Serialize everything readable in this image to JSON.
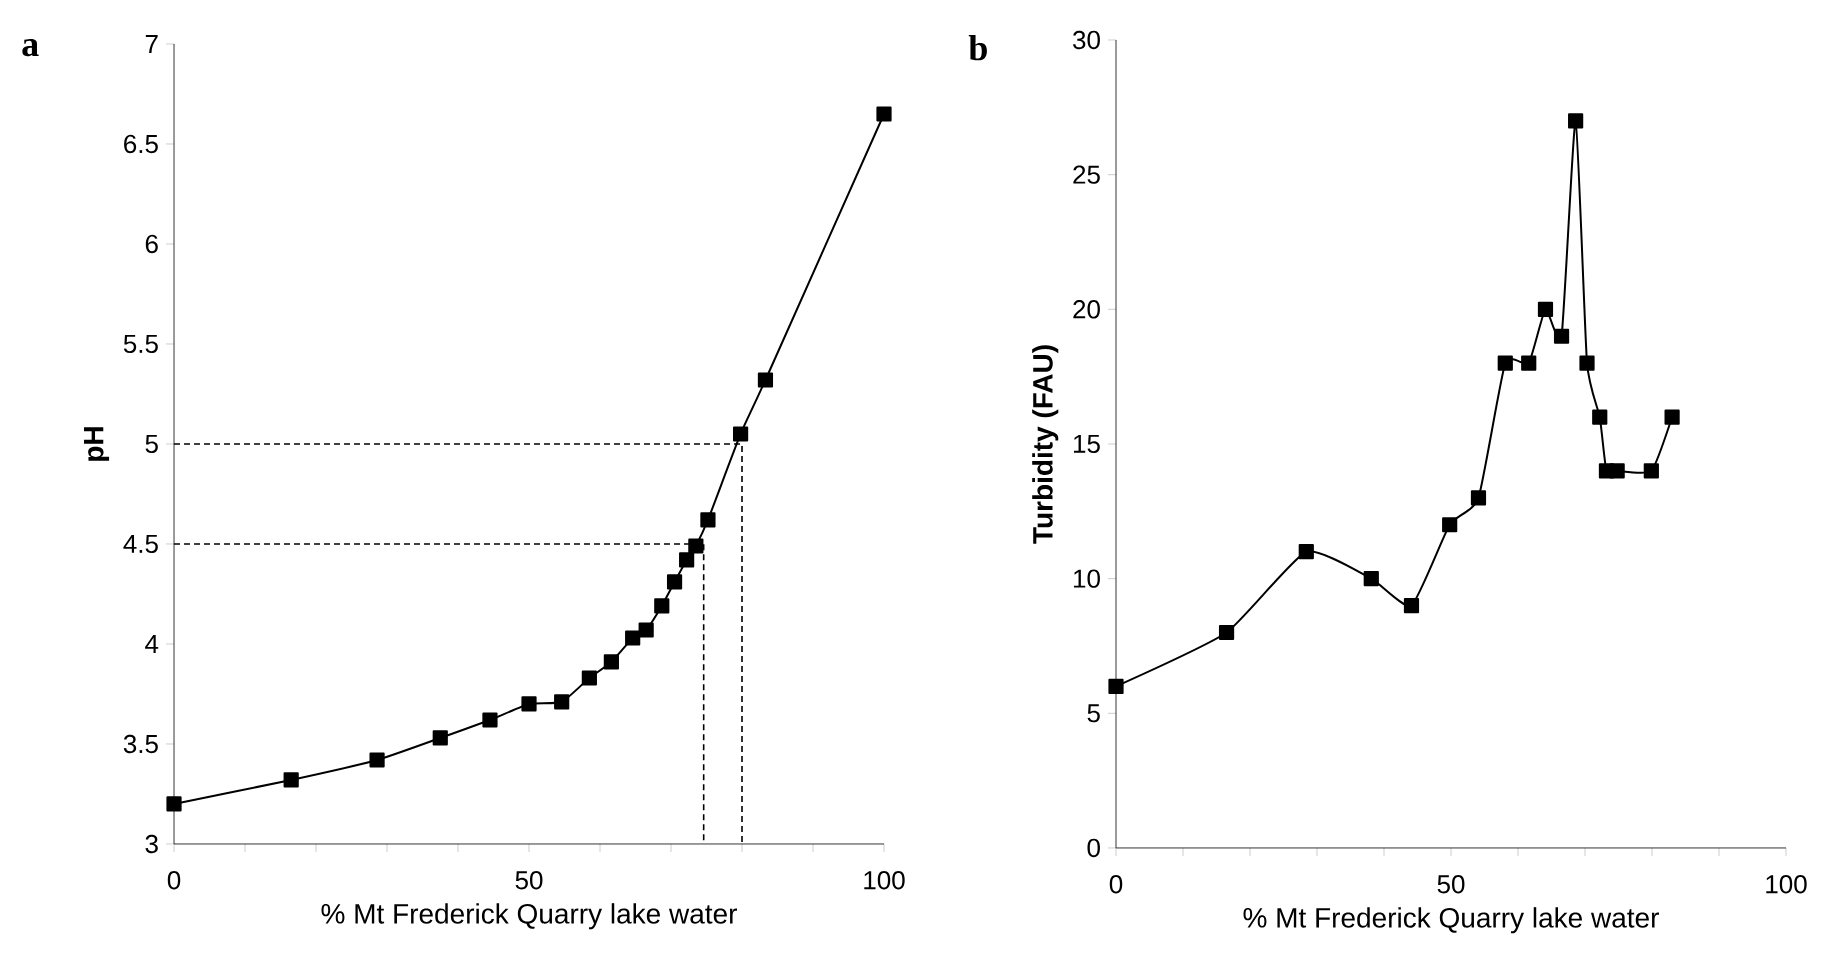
{
  "chart_data": [
    {
      "type": "line",
      "title": "a",
      "xlabel": "% Mt Frederick Quarry lake water",
      "ylabel": "pH",
      "xlim": [
        0,
        100
      ],
      "ylim": [
        3,
        7
      ],
      "xticks": [
        0,
        {
          "value": 10,
          "label": null
        },
        {
          "value": 20,
          "label": null
        },
        {
          "value": 30,
          "label": null
        },
        {
          "value": 40,
          "label": null
        },
        50,
        {
          "value": 60,
          "label": null
        },
        {
          "value": 70,
          "label": null
        },
        {
          "value": 80,
          "label": null
        },
        {
          "value": 90,
          "label": null
        },
        100
      ],
      "yticks": [
        3,
        3.5,
        4,
        4.5,
        5,
        5.5,
        6,
        6.5,
        7
      ],
      "marker": "square",
      "series": [
        {
          "color": "#000000",
          "x": [
            0,
            16.5,
            28.6,
            37.5,
            44.5,
            50,
            54.6,
            58.5,
            61.6,
            64.6,
            66.5,
            68.7,
            70.5,
            72.2,
            73.5,
            75.2,
            79.8,
            83.3,
            100
          ],
          "values": [
            3.2,
            3.32,
            3.42,
            3.53,
            3.62,
            3.7,
            3.71,
            3.83,
            3.91,
            4.03,
            4.07,
            4.19,
            4.31,
            4.42,
            4.49,
            4.62,
            5.05,
            5.32,
            6.65
          ]
        },
        {
          "color": "#000000",
          "line_style": "dashed",
          "marker": "none",
          "x": [
            0,
            74.6,
            74.6
          ],
          "values": [
            4.5,
            4.5,
            3
          ]
        },
        {
          "color": "#000000",
          "line_style": "dashed",
          "marker": "none",
          "x": [
            0,
            80,
            80
          ],
          "values": [
            5,
            5,
            3
          ]
        }
      ]
    },
    {
      "type": "line",
      "title": "b",
      "xlabel": "% Mt Frederick Quarry lake water",
      "ylabel": "Turbidity (FAU)",
      "xlim": [
        0,
        100
      ],
      "ylim": [
        0,
        30
      ],
      "xticks": [
        0,
        {
          "value": 10,
          "label": null
        },
        {
          "value": 20,
          "label": null
        },
        {
          "value": 30,
          "label": null
        },
        {
          "value": 40,
          "label": null
        },
        50,
        {
          "value": 60,
          "label": null
        },
        {
          "value": 70,
          "label": null
        },
        {
          "value": 80,
          "label": null
        },
        {
          "value": 90,
          "label": null
        },
        100
      ],
      "yticks": [
        0,
        5,
        10,
        15,
        20,
        25,
        30
      ],
      "marker": "square",
      "series": [
        {
          "color": "#000000",
          "x": [
            0,
            16.5,
            28.4,
            38.1,
            44.1,
            49.8,
            54.1,
            58.1,
            61.6,
            64.1,
            66.5,
            68.6,
            70.3,
            72.2,
            73.2,
            74.8,
            79.9,
            83
          ],
          "values": [
            6,
            8,
            11,
            10,
            9,
            12,
            13,
            18,
            18,
            20,
            19,
            27,
            18,
            16,
            14,
            14,
            14,
            16
          ]
        }
      ]
    }
  ]
}
